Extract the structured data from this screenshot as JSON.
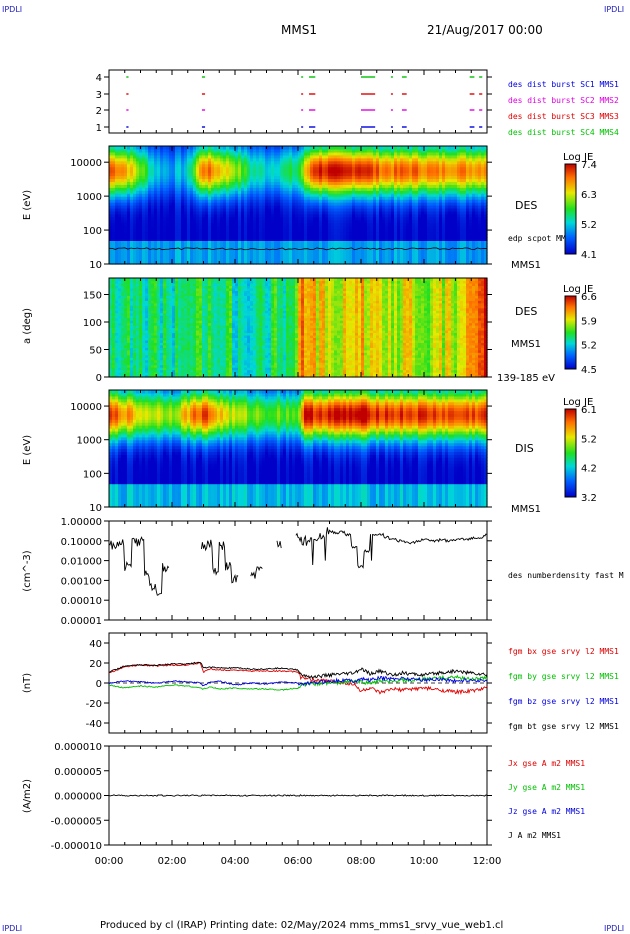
{
  "header": {
    "corner_label": "IPDLI",
    "title": "MMS1",
    "date": "21/Aug/2017 00:00"
  },
  "footer": {
    "text": "Produced by cl (IRAP)   Printing date: 02/May/2024   mms_mms1_srvy_vue_web1.cl"
  },
  "time_axis": {
    "ticks": [
      "00:00",
      "02:00",
      "04:00",
      "06:00",
      "08:00",
      "10:00",
      "12:00"
    ],
    "range_hours": [
      0,
      12
    ]
  },
  "colors": {
    "red": "#e00000",
    "green": "#00c000",
    "blue": "#0000e0",
    "magenta": "#e000e0",
    "black": "#000000",
    "label_blue": "#2020c0"
  },
  "panels": {
    "burst": {
      "yticks": [
        "1",
        "2",
        "3",
        "4"
      ],
      "labels": [
        {
          "text": "des dist burst SC1 MMS1",
          "color": "#0000e0"
        },
        {
          "text": "des dist burst SC2 MMS2",
          "color": "#e000e0"
        },
        {
          "text": "des dist burst SC3 MMS3",
          "color": "#e00000"
        },
        {
          "text": "des dist burst SC4 MMS4",
          "color": "#00c000"
        }
      ]
    },
    "des_energy": {
      "ylabel": "E (eV)",
      "yticks": [
        "10",
        "100",
        "1000",
        "10000"
      ],
      "side_label": "DES",
      "line_label": "edp scpot MMS1",
      "sat_label": "MMS1",
      "colorbar_title": "Log JE",
      "colorbar_ticks": [
        "7.4",
        "6.3",
        "5.2",
        "4.1"
      ]
    },
    "des_pitch": {
      "ylabel": "a (deg)",
      "yticks": [
        "0",
        "50",
        "100",
        "150"
      ],
      "side_label": "DES",
      "sat_label": "MMS1",
      "range_label": "139-185 eV",
      "colorbar_title": "Log JE",
      "colorbar_ticks": [
        "6.6",
        "5.9",
        "5.2",
        "4.5"
      ]
    },
    "dis_energy": {
      "ylabel": "E (eV)",
      "yticks": [
        "10",
        "100",
        "1000",
        "10000"
      ],
      "side_label": "DIS",
      "sat_label": "MMS1",
      "colorbar_title": "Log JE",
      "colorbar_ticks": [
        "6.1",
        "5.2",
        "4.2",
        "3.2"
      ]
    },
    "density": {
      "ylabel": "(cm^-3)",
      "yticks": [
        "1.00000",
        "0.10000",
        "0.01000",
        "0.00100",
        "0.00010",
        "0.00001"
      ],
      "label": "des numberdensity fast M"
    },
    "fgm": {
      "ylabel": "(nT)",
      "yticks": [
        "40",
        "20",
        "0",
        "-20",
        "-40"
      ],
      "labels": [
        {
          "text": "fgm bx gse srvy l2 MMS1",
          "color": "#e00000"
        },
        {
          "text": "fgm by gse srvy l2 MMS1",
          "color": "#00c000"
        },
        {
          "text": "fgm bz gse srvy l2 MMS1",
          "color": "#0000e0"
        },
        {
          "text": "fgm bt gse srvy l2 MMS1",
          "color": "#000000"
        }
      ]
    },
    "current": {
      "ylabel": "(A/m2)",
      "yticks": [
        "0.000010",
        "0.000005",
        "0.000000",
        "-0.000005",
        "-0.000010"
      ],
      "labels": [
        {
          "text": "Jx gse A m2 MMS1",
          "color": "#e00000"
        },
        {
          "text": "Jy gse A m2 MMS1",
          "color": "#00c000"
        },
        {
          "text": "Jz gse A m2 MMS1",
          "color": "#0000e0"
        },
        {
          "text": "J A m2 MMS1",
          "color": "#000000"
        }
      ]
    }
  },
  "chart_data": [
    {
      "type": "scatter",
      "name_key": "burst",
      "series": [
        {
          "sc": 4,
          "intervals_h": [
            [
              0.55,
              0.62
            ],
            [
              2.95,
              3.05
            ],
            [
              6.1,
              6.12
            ],
            [
              6.35,
              6.55
            ],
            [
              8.0,
              8.45
            ],
            [
              8.95,
              8.98
            ],
            [
              9.3,
              9.45
            ],
            [
              11.45,
              11.6
            ],
            [
              11.75,
              11.85
            ]
          ]
        },
        {
          "sc": 3,
          "intervals_h": [
            [
              0.55,
              0.62
            ],
            [
              2.95,
              3.05
            ],
            [
              6.1,
              6.12
            ],
            [
              6.35,
              6.55
            ],
            [
              8.0,
              8.45
            ],
            [
              8.95,
              8.98
            ],
            [
              9.3,
              9.45
            ],
            [
              11.45,
              11.6
            ],
            [
              11.75,
              11.85
            ]
          ]
        },
        {
          "sc": 2,
          "intervals_h": [
            [
              0.55,
              0.62
            ],
            [
              2.95,
              3.05
            ],
            [
              6.1,
              6.12
            ],
            [
              6.35,
              6.55
            ],
            [
              8.0,
              8.45
            ],
            [
              8.95,
              8.98
            ],
            [
              9.3,
              9.45
            ],
            [
              11.45,
              11.6
            ],
            [
              11.75,
              11.85
            ]
          ]
        },
        {
          "sc": 1,
          "intervals_h": [
            [
              0.55,
              0.62
            ],
            [
              2.95,
              3.05
            ],
            [
              6.1,
              6.12
            ],
            [
              6.35,
              6.55
            ],
            [
              8.0,
              8.45
            ],
            [
              8.95,
              8.98
            ],
            [
              9.3,
              9.45
            ],
            [
              11.45,
              11.6
            ],
            [
              11.75,
              11.85
            ]
          ]
        }
      ],
      "ylim": [
        0.5,
        4.5
      ]
    },
    {
      "type": "heatmap",
      "name_key": "des_energy",
      "ylim_log": [
        10,
        30000
      ],
      "color_range": [
        4.1,
        7.4
      ],
      "time_profile_h": [
        0,
        0.5,
        1.0,
        1.5,
        2.0,
        2.5,
        3.0,
        3.5,
        4.0,
        4.5,
        5.0,
        5.5,
        6.0,
        6.5,
        7.0,
        7.5,
        8.0,
        8.5,
        9.0,
        9.5,
        10.0,
        10.5,
        11.0,
        11.5,
        12.0
      ],
      "peak_level": [
        7.1,
        6.8,
        6.0,
        5.2,
        5.0,
        5.2,
        7.0,
        6.6,
        6.2,
        5.5,
        5.3,
        5.5,
        5.6,
        7.3,
        7.3,
        7.2,
        7.4,
        7.0,
        6.9,
        7.0,
        6.9,
        6.8,
        6.9,
        6.8,
        6.9
      ]
    },
    {
      "type": "heatmap",
      "name_key": "des_pitch",
      "ylim": [
        0,
        180
      ],
      "color_range": [
        4.5,
        6.6
      ],
      "time_profile_h": [
        0,
        1,
        2,
        3,
        4,
        5,
        6,
        6.1,
        6.3,
        7,
        8,
        9,
        10,
        11,
        11.5,
        12
      ],
      "level": [
        5.5,
        5.3,
        5.4,
        5.5,
        5.4,
        5.4,
        5.5,
        6.5,
        6.0,
        5.9,
        6.0,
        5.9,
        5.8,
        5.9,
        6.3,
        6.4
      ]
    },
    {
      "type": "heatmap",
      "name_key": "dis_energy",
      "ylim_log": [
        10,
        30000
      ],
      "color_range": [
        3.2,
        6.1
      ],
      "time_profile_h": [
        0,
        0.5,
        1,
        2,
        3,
        3.5,
        4,
        5,
        6,
        6.2,
        7,
        8,
        9,
        10,
        11,
        12
      ],
      "peak_level": [
        5.8,
        5.6,
        5.2,
        5.0,
        5.9,
        5.4,
        5.0,
        4.8,
        4.8,
        6.0,
        6.0,
        6.1,
        5.9,
        5.9,
        5.8,
        5.9
      ]
    },
    {
      "type": "line",
      "name_key": "density",
      "yscale": "log",
      "ylim": [
        1e-05,
        1.0
      ],
      "x_h": [
        0.0,
        0.2,
        0.4,
        0.6,
        0.8,
        1.0,
        1.2,
        1.4,
        1.6,
        1.8,
        2.0,
        2.2,
        2.4,
        2.6,
        2.8,
        3.0,
        3.2,
        3.4,
        3.6,
        3.8,
        4.0,
        4.2,
        4.4,
        4.6,
        4.8,
        5.0,
        5.2,
        5.4,
        5.6,
        5.8,
        6.0,
        6.2,
        6.4,
        6.6,
        6.8,
        7.0,
        7.2,
        7.4,
        7.6,
        7.8,
        8.0,
        8.2,
        8.4,
        8.6,
        8.8,
        9.0,
        9.2,
        9.4,
        9.6,
        9.8,
        10.0,
        10.2,
        10.4,
        10.6,
        10.8,
        11.0,
        11.2,
        11.4,
        11.6,
        11.8,
        12.0
      ],
      "y": [
        0.07,
        0.06,
        0.08,
        0.005,
        0.08,
        0.1,
        0.002,
        0.0005,
        0.0002,
        0.005,
        null,
        null,
        null,
        null,
        null,
        0.05,
        0.07,
        0.003,
        0.06,
        0.005,
        0.001,
        null,
        null,
        0.002,
        0.004,
        null,
        null,
        0.06,
        null,
        null,
        0.15,
        0.1,
        0.12,
        0.18,
        0.2,
        0.3,
        0.25,
        0.28,
        0.2,
        0.05,
        0.005,
        0.03,
        0.2,
        0.22,
        0.15,
        0.12,
        0.1,
        0.09,
        0.08,
        0.1,
        0.12,
        0.11,
        0.1,
        0.12,
        0.1,
        0.11,
        0.12,
        0.12,
        0.14,
        0.15,
        0.2
      ]
    },
    {
      "type": "line",
      "name_key": "fgm",
      "ylim": [
        -50,
        50
      ],
      "x_h": [
        0.0,
        0.5,
        1.0,
        1.5,
        2.0,
        2.5,
        2.9,
        3.0,
        3.2,
        3.5,
        4.0,
        4.5,
        5.0,
        5.5,
        6.0,
        6.1,
        6.5,
        7.0,
        7.5,
        7.8,
        8.0,
        8.3,
        8.6,
        9.0,
        9.3,
        9.6,
        10.0,
        10.5,
        11.0,
        11.5,
        12.0
      ],
      "series": [
        {
          "key": "bx",
          "y": [
            10,
            16,
            18,
            17,
            18,
            18,
            20,
            11,
            14,
            13,
            13,
            12,
            12,
            12,
            11,
            5,
            3,
            2,
            0,
            -2,
            -8,
            -5,
            -10,
            -6,
            -7,
            -6,
            -5,
            -7,
            -9,
            -8,
            -5
          ]
        },
        {
          "key": "by",
          "y": [
            -2,
            -5,
            -3,
            -4,
            -2,
            -3,
            -5,
            -6,
            -4,
            -6,
            -5,
            -6,
            -6,
            -7,
            -5,
            -2,
            -1,
            0,
            1,
            2,
            1,
            0,
            2,
            1,
            3,
            2,
            4,
            5,
            6,
            4,
            5
          ]
        },
        {
          "key": "bz",
          "y": [
            0,
            2,
            1,
            0,
            2,
            1,
            0,
            -3,
            1,
            2,
            -2,
            0,
            -1,
            1,
            0,
            -1,
            0,
            2,
            3,
            2,
            4,
            3,
            5,
            4,
            5,
            4,
            3,
            4,
            2,
            3,
            2
          ]
        },
        {
          "key": "bt",
          "y": [
            11,
            17,
            18,
            18,
            19,
            19,
            21,
            15,
            16,
            15,
            15,
            14,
            14,
            15,
            13,
            8,
            6,
            8,
            9,
            10,
            14,
            9,
            12,
            8,
            10,
            9,
            8,
            10,
            12,
            10,
            8
          ]
        }
      ]
    },
    {
      "type": "line",
      "name_key": "current",
      "ylim": [
        -1e-05,
        1e-05
      ],
      "x_h": [
        0,
        12
      ],
      "series": [
        {
          "key": "J",
          "y": [
            0.0,
            0.0
          ]
        }
      ]
    }
  ]
}
